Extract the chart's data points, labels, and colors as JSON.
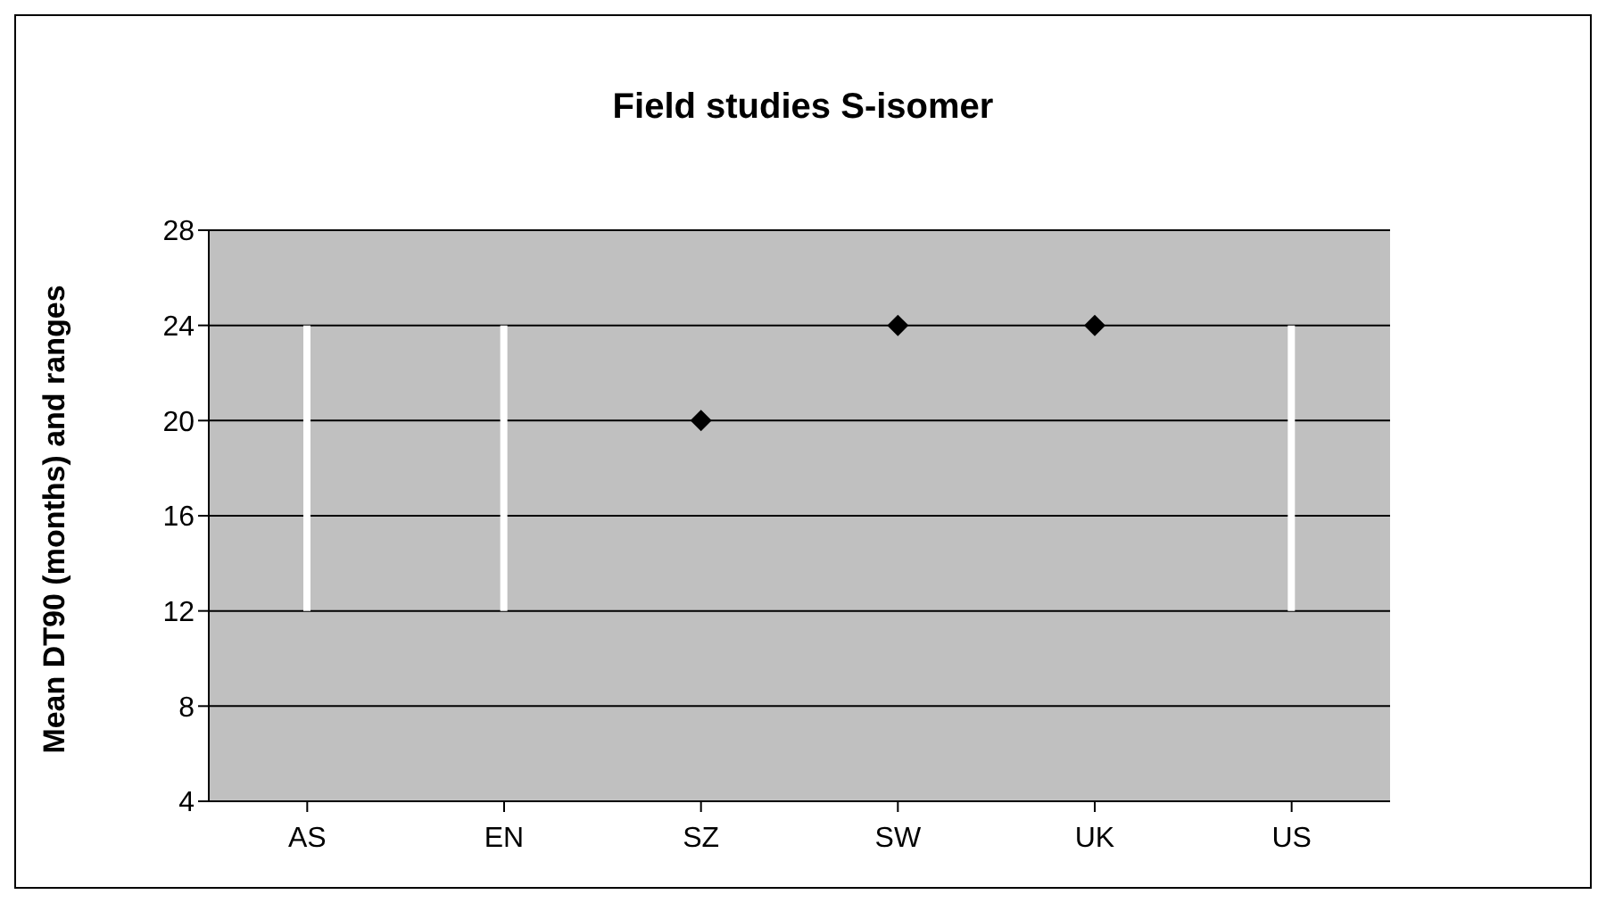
{
  "chart_data": {
    "type": "scatter",
    "title": "Field studies S-isomer",
    "ylabel": "Mean DT90 (months) and ranges",
    "categories": [
      "AS",
      "EN",
      "SZ",
      "SW",
      "UK",
      "US"
    ],
    "series": [
      {
        "type": "bar",
        "color": "#ffffff",
        "base": [
          12,
          12,
          null,
          null,
          null,
          12
        ],
        "values": [
          12,
          12,
          null,
          null,
          null,
          12
        ]
      },
      {
        "color": "#000000",
        "marker": "diamond",
        "values": [
          null,
          null,
          20,
          24,
          24,
          null
        ]
      }
    ],
    "ylim": [
      4,
      28
    ],
    "yticks": [
      4,
      8,
      12,
      16,
      20,
      24,
      28
    ],
    "grid": "y",
    "legend": false
  }
}
